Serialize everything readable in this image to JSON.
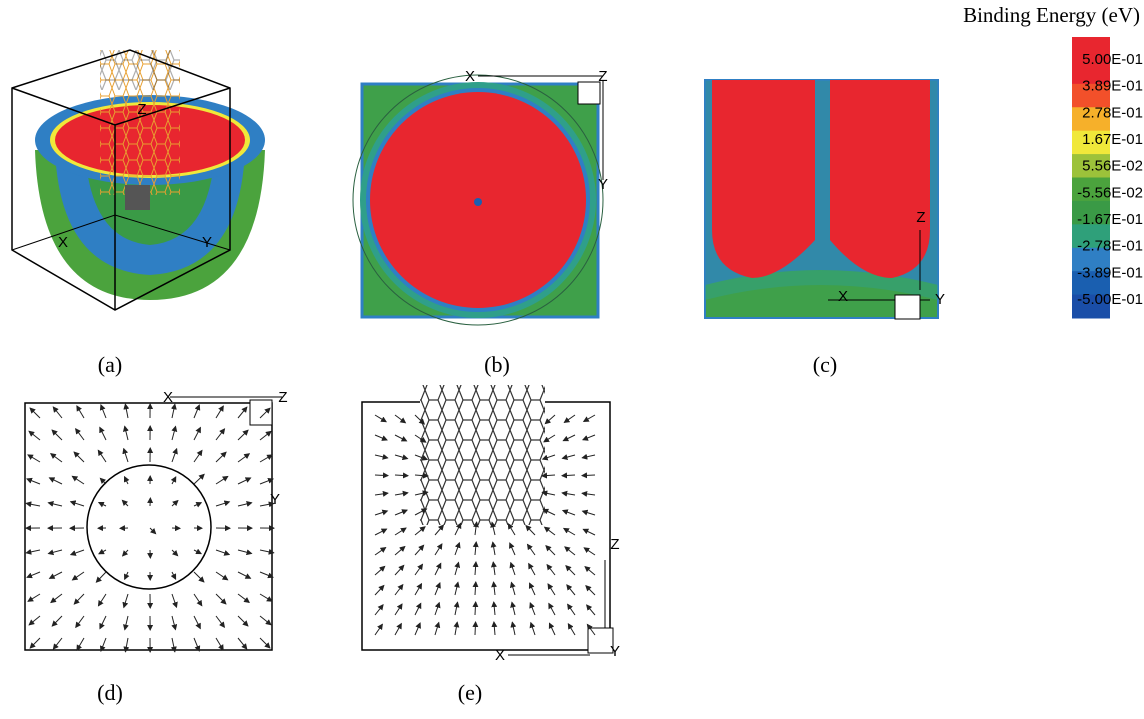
{
  "panels": [
    {
      "label": "(a)",
      "axes": [
        "X",
        "Y",
        "Z"
      ]
    },
    {
      "label": "(b)",
      "axes": [
        "X",
        "Y",
        "Z"
      ]
    },
    {
      "label": "(c)",
      "axes": [
        "X",
        "Y",
        "Z"
      ]
    },
    {
      "label": "(d)",
      "axes": [
        "X",
        "Y",
        "Z"
      ]
    },
    {
      "label": "(e)",
      "axes": [
        "X",
        "Y",
        "Z"
      ]
    }
  ],
  "colorbar": {
    "title": "Binding Energy (eV)",
    "ticks": [
      "5.00E-01",
      "3.89E-01",
      "2.78E-01",
      "1.67E-01",
      "5.56E-02",
      "-5.56E-02",
      "-1.67E-01",
      "-2.78E-01",
      "-3.89E-01",
      "-5.00E-01"
    ],
    "colors": [
      "#e8262f",
      "#e8262f",
      "#f2502a",
      "#f6b02a",
      "#f0e83a",
      "#9cc23a",
      "#4ba33d",
      "#3a9a46",
      "#2fa07a",
      "#2f7fc4",
      "#1a5fb0",
      "#1a4ea8"
    ]
  }
}
